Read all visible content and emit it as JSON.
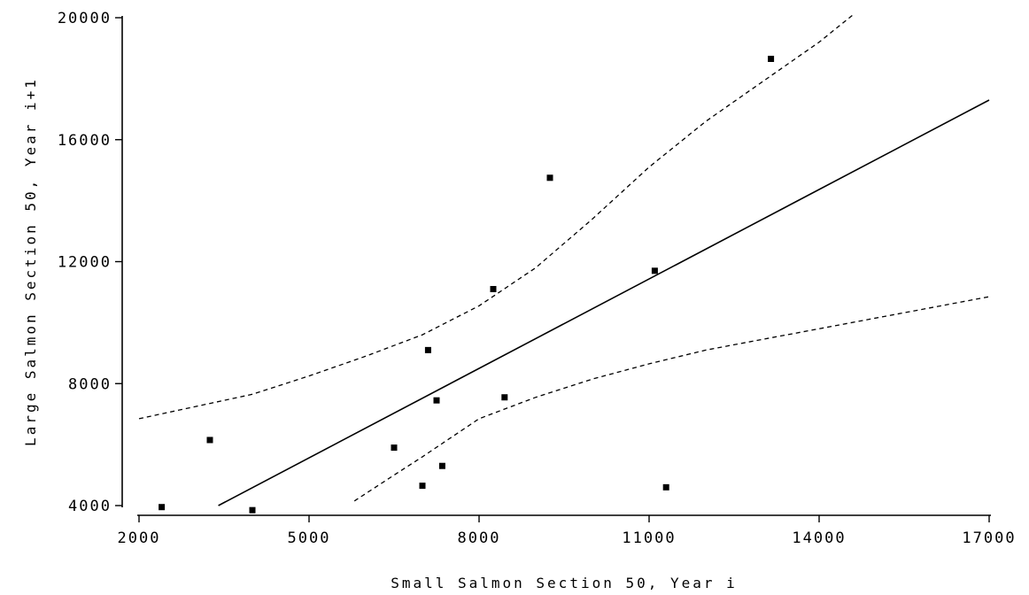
{
  "chart_data": {
    "type": "scatter",
    "xlabel": "Small Salmon Section 50, Year i",
    "ylabel": "Large Salmon Section 50, Year i+1",
    "xlim": [
      2000,
      17000
    ],
    "ylim": [
      4000,
      20000
    ],
    "x_ticks": [
      2000,
      5000,
      8000,
      11000,
      14000,
      17000
    ],
    "y_ticks": [
      4000,
      8000,
      12000,
      16000,
      20000
    ],
    "x_tick_labels": [
      "2000",
      "5000",
      "8000",
      "11000",
      "14000",
      "17000"
    ],
    "y_tick_labels": [
      "4000",
      "8000",
      "12000",
      "16000",
      "20000"
    ],
    "grid": false,
    "points": [
      {
        "x": 2400,
        "y": 3950
      },
      {
        "x": 3250,
        "y": 6150
      },
      {
        "x": 4000,
        "y": 3850
      },
      {
        "x": 6500,
        "y": 5900
      },
      {
        "x": 7000,
        "y": 4650
      },
      {
        "x": 7100,
        "y": 9100
      },
      {
        "x": 7250,
        "y": 7450
      },
      {
        "x": 7350,
        "y": 5300
      },
      {
        "x": 8250,
        "y": 11100
      },
      {
        "x": 8450,
        "y": 7550
      },
      {
        "x": 9250,
        "y": 14750
      },
      {
        "x": 11100,
        "y": 11700
      },
      {
        "x": 11300,
        "y": 4600
      },
      {
        "x": 13150,
        "y": 18650
      }
    ],
    "regression_line": [
      {
        "x": 3400,
        "y": 4000
      },
      {
        "x": 17000,
        "y": 17300
      }
    ],
    "upper_band": [
      {
        "x": 2000,
        "y": 6850
      },
      {
        "x": 3000,
        "y": 7250
      },
      {
        "x": 4000,
        "y": 7650
      },
      {
        "x": 5000,
        "y": 8250
      },
      {
        "x": 6000,
        "y": 8900
      },
      {
        "x": 7000,
        "y": 9600
      },
      {
        "x": 8000,
        "y": 10550
      },
      {
        "x": 9000,
        "y": 11800
      },
      {
        "x": 10000,
        "y": 13400
      },
      {
        "x": 11000,
        "y": 15100
      },
      {
        "x": 12000,
        "y": 16600
      },
      {
        "x": 13000,
        "y": 17900
      },
      {
        "x": 14000,
        "y": 19200
      },
      {
        "x": 14600,
        "y": 20100
      }
    ],
    "lower_band": [
      {
        "x": 5800,
        "y": 4150
      },
      {
        "x": 6500,
        "y": 5000
      },
      {
        "x": 7000,
        "y": 5600
      },
      {
        "x": 8000,
        "y": 6850
      },
      {
        "x": 9000,
        "y": 7550
      },
      {
        "x": 10000,
        "y": 8150
      },
      {
        "x": 11000,
        "y": 8650
      },
      {
        "x": 12000,
        "y": 9100
      },
      {
        "x": 13000,
        "y": 9450
      },
      {
        "x": 14000,
        "y": 9800
      },
      {
        "x": 15000,
        "y": 10150
      },
      {
        "x": 16000,
        "y": 10500
      },
      {
        "x": 17000,
        "y": 10850
      }
    ]
  }
}
